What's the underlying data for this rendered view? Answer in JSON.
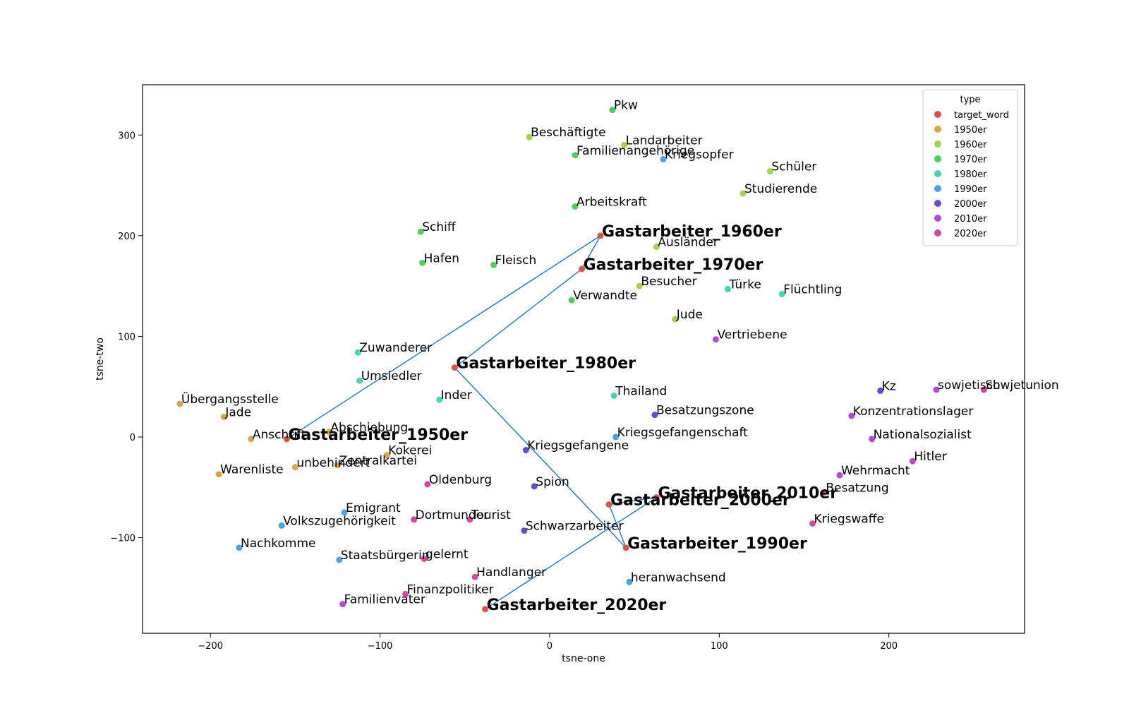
{
  "chart_data": {
    "type": "scatter",
    "xlabel": "tsne-one",
    "ylabel": "tsne-two",
    "xlim": [
      -240,
      280
    ],
    "ylim": [
      -195,
      350
    ],
    "xticks": [
      -200,
      -100,
      0,
      100,
      200
    ],
    "yticks": [
      -100,
      0,
      100,
      200,
      300
    ],
    "xtick_labels": [
      "−200",
      "−100",
      "0",
      "100",
      "200"
    ],
    "ytick_labels": [
      "−100",
      "0",
      "100",
      "200",
      "300"
    ],
    "grid": false,
    "legend": {
      "title": "type",
      "placement": "top-right",
      "entries": [
        {
          "label": "target_word",
          "color": "#d9534f"
        },
        {
          "label": "1950er",
          "color": "#d9a441"
        },
        {
          "label": "1960er",
          "color": "#a3d44a"
        },
        {
          "label": "1970er",
          "color": "#4cd05a"
        },
        {
          "label": "1980er",
          "color": "#45d6b3"
        },
        {
          "label": "1990er",
          "color": "#4aa3dc"
        },
        {
          "label": "2000er",
          "color": "#5b4fd4"
        },
        {
          "label": "2010er",
          "color": "#b24ad6"
        },
        {
          "label": "2020er",
          "color": "#d6479c"
        }
      ]
    },
    "line_color": "#1f77b4",
    "trajectory": [
      "Gastarbeiter_1950er",
      "Gastarbeiter_1960er",
      "Gastarbeiter_1970er",
      "Gastarbeiter_1980er",
      "Gastarbeiter_1990er",
      "Gastarbeiter_2000er",
      "Gastarbeiter_2010er",
      "Gastarbeiter_2020er"
    ],
    "points": [
      {
        "label": "Gastarbeiter_1950er",
        "x": -155,
        "y": -2,
        "type": "target_word"
      },
      {
        "label": "Gastarbeiter_1960er",
        "x": 30,
        "y": 200,
        "type": "target_word"
      },
      {
        "label": "Gastarbeiter_1970er",
        "x": 19,
        "y": 167,
        "type": "target_word"
      },
      {
        "label": "Gastarbeiter_1980er",
        "x": -56,
        "y": 69,
        "type": "target_word"
      },
      {
        "label": "Gastarbeiter_1990er",
        "x": 45,
        "y": -110,
        "type": "target_word"
      },
      {
        "label": "Gastarbeiter_2000er",
        "x": 35,
        "y": -67,
        "type": "target_word"
      },
      {
        "label": "Gastarbeiter_2010er",
        "x": 63,
        "y": -60,
        "type": "target_word"
      },
      {
        "label": "Gastarbeiter_2020er",
        "x": -38,
        "y": -171,
        "type": "target_word"
      },
      {
        "label": "Übergangsstelle",
        "x": -218,
        "y": 33,
        "type": "1950er"
      },
      {
        "label": "Jade",
        "x": -192,
        "y": 20,
        "type": "1950er"
      },
      {
        "label": "Anschrift",
        "x": -176,
        "y": -2,
        "type": "1950er"
      },
      {
        "label": "Abschiebung",
        "x": -130,
        "y": 5,
        "type": "1950er"
      },
      {
        "label": "Kokerei",
        "x": -96,
        "y": -18,
        "type": "1950er"
      },
      {
        "label": "Zentralkartei",
        "x": -125,
        "y": -28,
        "type": "1950er"
      },
      {
        "label": "unbehindert",
        "x": -150,
        "y": -30,
        "type": "1950er"
      },
      {
        "label": "Warenliste",
        "x": -195,
        "y": -37,
        "type": "1950er"
      },
      {
        "label": "Beschäftigte",
        "x": -12,
        "y": 298,
        "type": "1960er"
      },
      {
        "label": "Landarbeiter",
        "x": 44,
        "y": 290,
        "type": "1960er"
      },
      {
        "label": "Schüler",
        "x": 130,
        "y": 264,
        "type": "1960er"
      },
      {
        "label": "Studierende",
        "x": 114,
        "y": 242,
        "type": "1960er"
      },
      {
        "label": "Ausländer",
        "x": 63,
        "y": 189,
        "type": "1960er"
      },
      {
        "label": "Besucher",
        "x": 53,
        "y": 150,
        "type": "1960er"
      },
      {
        "label": "Jude",
        "x": 74,
        "y": 117,
        "type": "1960er"
      },
      {
        "label": "Pkw",
        "x": 37,
        "y": 325,
        "type": "1970er"
      },
      {
        "label": "Familienangehörige",
        "x": 15,
        "y": 280,
        "type": "1970er"
      },
      {
        "label": "Arbeitskraft",
        "x": 15,
        "y": 229,
        "type": "1970er"
      },
      {
        "label": "Schiff",
        "x": -76,
        "y": 204,
        "type": "1970er"
      },
      {
        "label": "Hafen",
        "x": -75,
        "y": 173,
        "type": "1970er"
      },
      {
        "label": "Fleisch",
        "x": -33,
        "y": 171,
        "type": "1970er"
      },
      {
        "label": "Verwandte",
        "x": 13,
        "y": 136,
        "type": "1970er"
      },
      {
        "label": "Türke",
        "x": 105,
        "y": 147,
        "type": "1980er"
      },
      {
        "label": "Flüchtling",
        "x": 137,
        "y": 142,
        "type": "1980er"
      },
      {
        "label": "Zuwanderer",
        "x": -113,
        "y": 84,
        "type": "1980er"
      },
      {
        "label": "Umsiedler",
        "x": -112,
        "y": 56,
        "type": "1980er"
      },
      {
        "label": "Inder",
        "x": -65,
        "y": 37,
        "type": "1980er"
      },
      {
        "label": "Thailand",
        "x": 38,
        "y": 41,
        "type": "1980er"
      },
      {
        "label": "Kriegsopfer",
        "x": 67,
        "y": 276,
        "type": "1990er"
      },
      {
        "label": "Kriegsgefangenschaft",
        "x": 39,
        "y": 0,
        "type": "1990er"
      },
      {
        "label": "Emigrant",
        "x": -121,
        "y": -75,
        "type": "1990er"
      },
      {
        "label": "Volkszugehörigkeit",
        "x": -158,
        "y": -88,
        "type": "1990er"
      },
      {
        "label": "Nachkomme",
        "x": -183,
        "y": -110,
        "type": "1990er"
      },
      {
        "label": "Staatsbürgerin",
        "x": -124,
        "y": -122,
        "type": "1990er"
      },
      {
        "label": "heranwachsend",
        "x": 47,
        "y": -144,
        "type": "1990er"
      },
      {
        "label": "Kz",
        "x": 195,
        "y": 46,
        "type": "2000er"
      },
      {
        "label": "Besatzungszone",
        "x": 62,
        "y": 22,
        "type": "2000er"
      },
      {
        "label": "Kriegsgefangene",
        "x": -14,
        "y": -13,
        "type": "2000er"
      },
      {
        "label": "Spion",
        "x": -9,
        "y": -49,
        "type": "2000er"
      },
      {
        "label": "Schwarzarbeiter",
        "x": -15,
        "y": -93,
        "type": "2000er"
      },
      {
        "label": "sowjetisch",
        "x": 228,
        "y": 47,
        "type": "2010er"
      },
      {
        "label": "Vertriebene",
        "x": 98,
        "y": 97,
        "type": "2010er"
      },
      {
        "label": "Konzentrationslager",
        "x": 178,
        "y": 21,
        "type": "2010er"
      },
      {
        "label": "Nationalsozialist",
        "x": 190,
        "y": -2,
        "type": "2010er"
      },
      {
        "label": "Hitler",
        "x": 214,
        "y": -24,
        "type": "2010er"
      },
      {
        "label": "Wehrmacht",
        "x": 171,
        "y": -38,
        "type": "2010er"
      },
      {
        "label": "Familienvater",
        "x": -122,
        "y": -166,
        "type": "2010er"
      },
      {
        "label": "Sowjetunion",
        "x": 256,
        "y": 47,
        "type": "2020er"
      },
      {
        "label": "Besatzung",
        "x": 162,
        "y": -55,
        "type": "2020er"
      },
      {
        "label": "Kriegswaffe",
        "x": 155,
        "y": -86,
        "type": "2020er"
      },
      {
        "label": "Oldenburg",
        "x": -72,
        "y": -47,
        "type": "2020er"
      },
      {
        "label": "Dortmunder",
        "x": -80,
        "y": -82,
        "type": "2020er"
      },
      {
        "label": "Tourist",
        "x": -47,
        "y": -82,
        "type": "2020er"
      },
      {
        "label": "gelernt",
        "x": -74,
        "y": -121,
        "type": "2020er"
      },
      {
        "label": "Handlanger",
        "x": -44,
        "y": -139,
        "type": "2020er"
      },
      {
        "label": "Finanzpolitiker",
        "x": -85,
        "y": -156,
        "type": "2020er"
      }
    ]
  }
}
